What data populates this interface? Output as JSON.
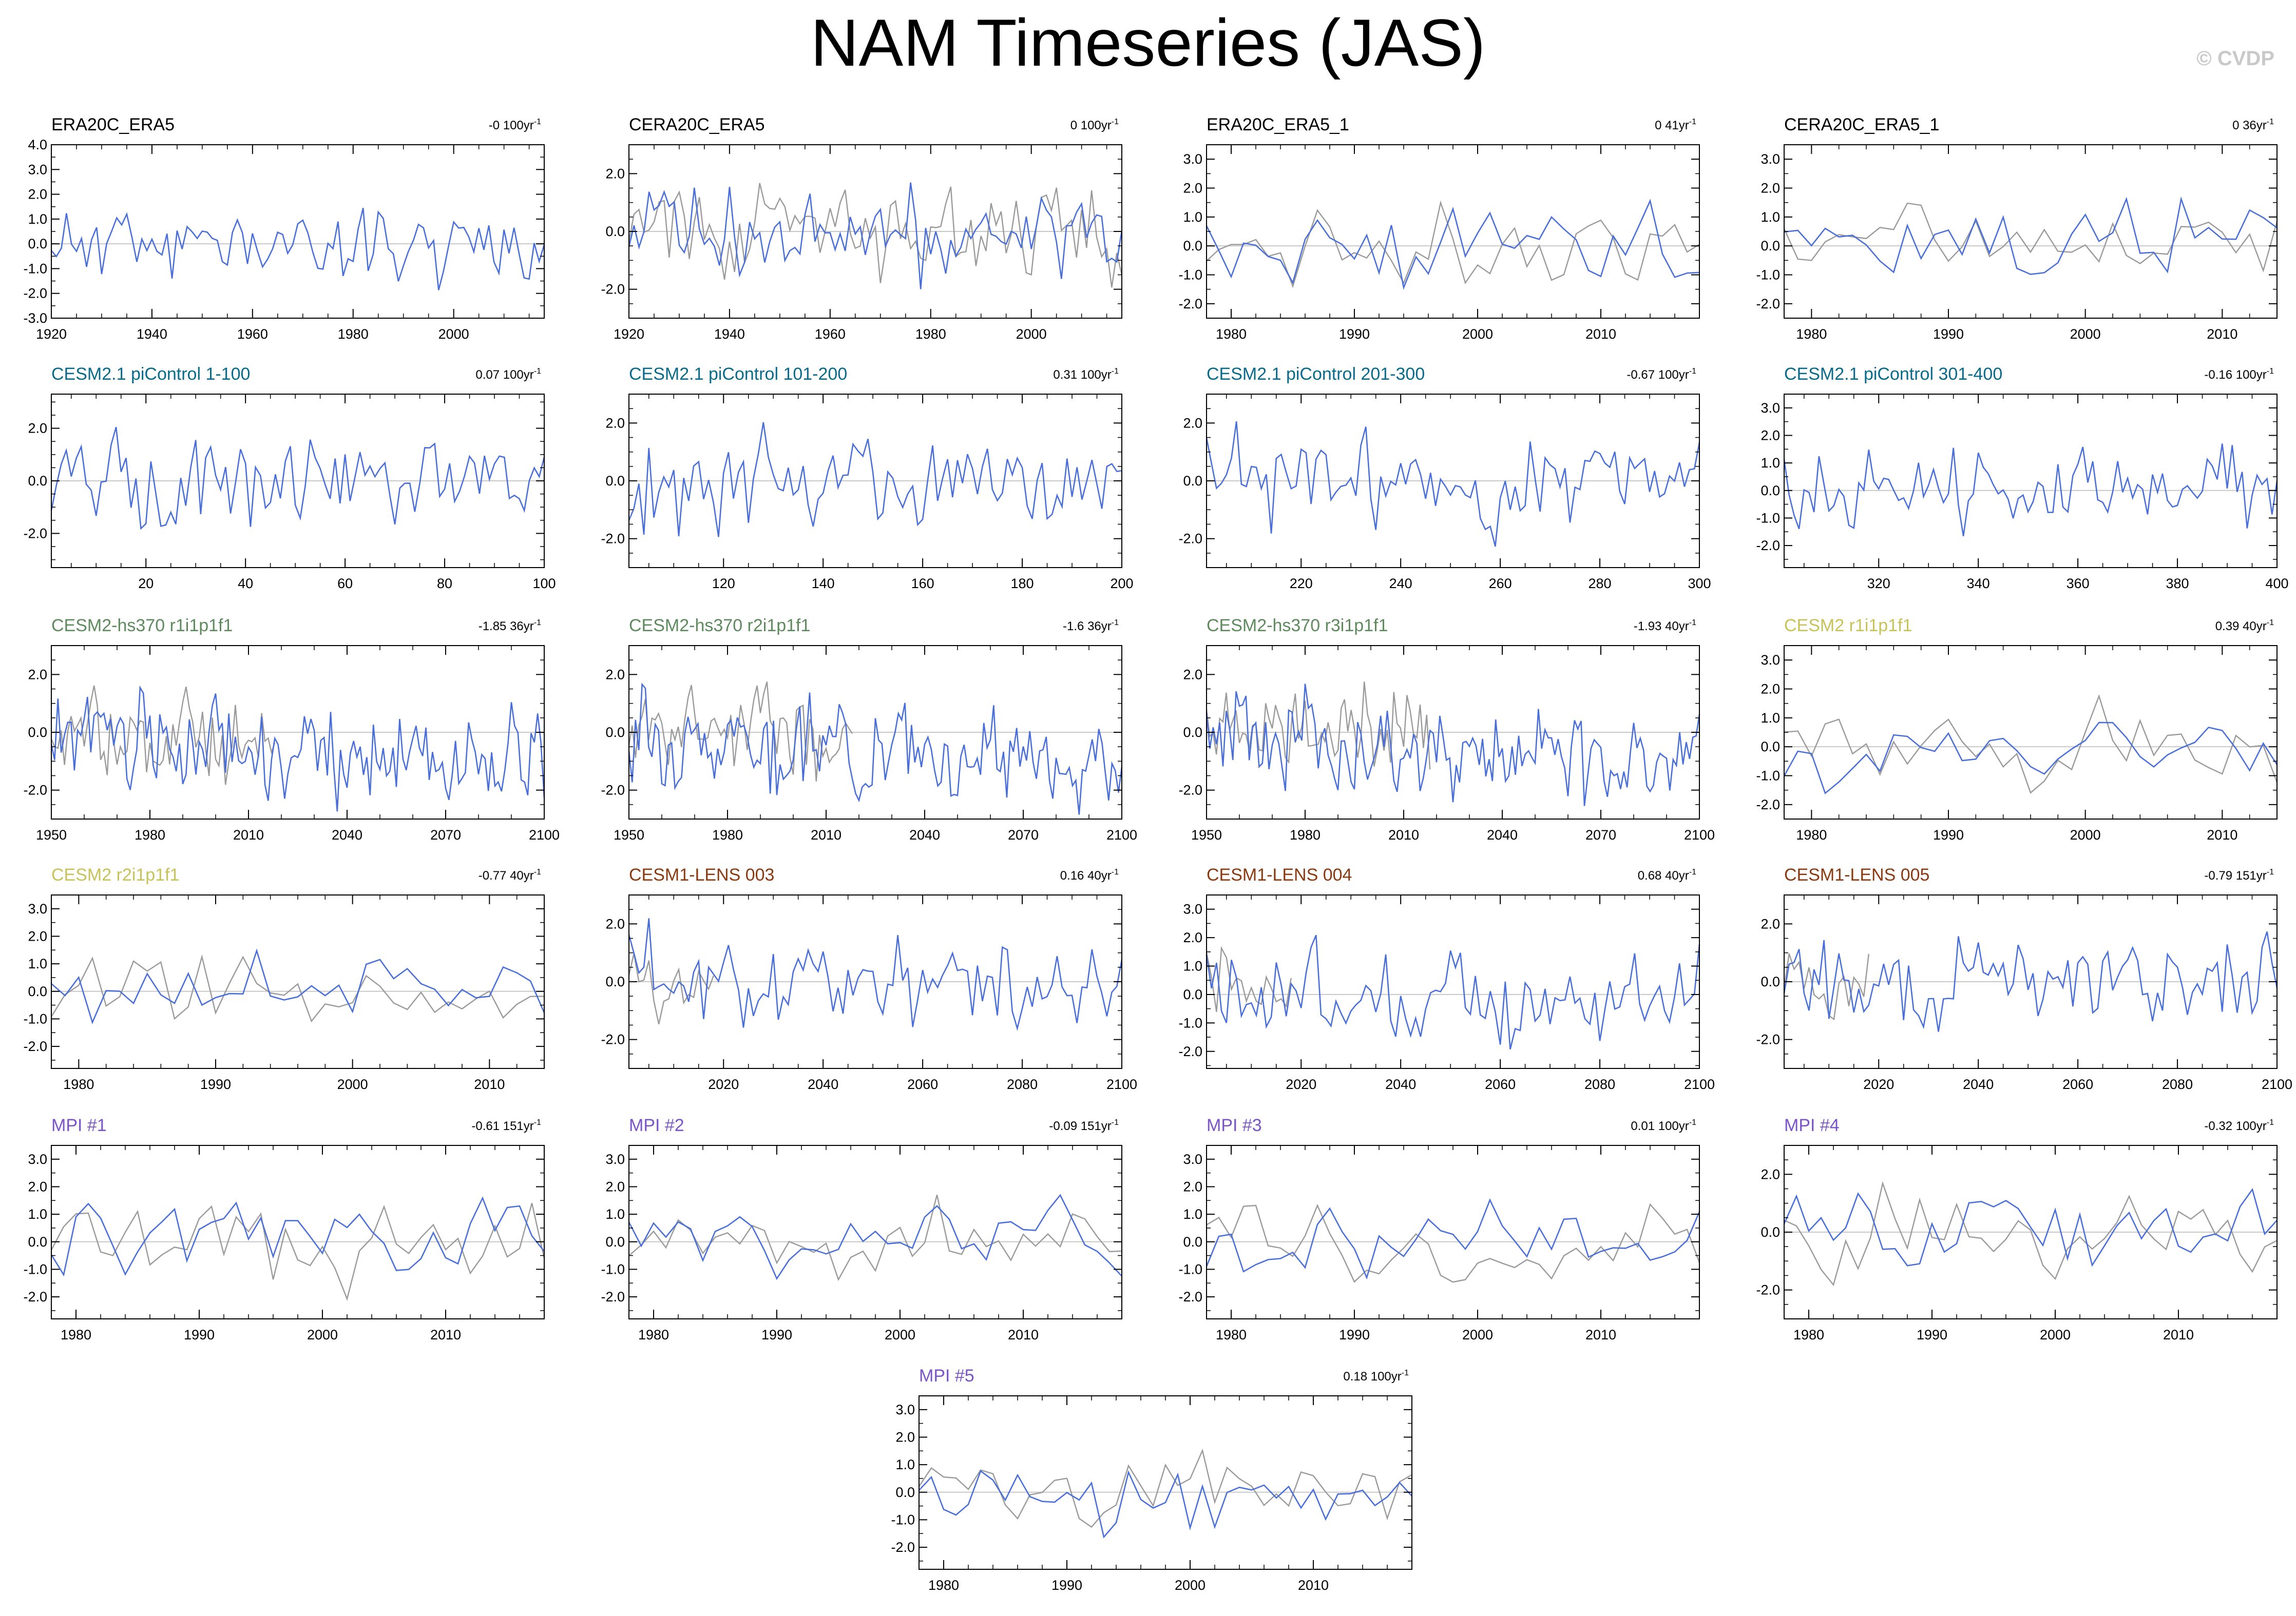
{
  "page": {
    "title": "NAM Timeseries (JAS)",
    "watermark": "© CVDP"
  },
  "colors": {
    "model_line": "#4a6fd8",
    "observation_line": "#9a9a9a",
    "zero_line": "#c8c8c8",
    "title_obs": "#000000",
    "title_picontrol": "#0a6a8a",
    "title_hs370": "#5e8a5e",
    "title_cesm2": "#c8c25a",
    "title_lens": "#8a3a10",
    "title_mpi": "#7a55c8"
  },
  "chart_data": [
    {
      "type": "line",
      "title": "ERA20C_ERA5",
      "title_color": "#000000",
      "trend": "-0 100yr",
      "xlim": [
        1920,
        2018
      ],
      "xticks": [
        1920,
        1940,
        1960,
        1980,
        2000
      ],
      "ylim": [
        -3,
        4
      ],
      "yticks": [
        "-3.0",
        "-2.0",
        "-1.0",
        "0.0",
        "1.0",
        "2.0",
        "3.0",
        "4.0"
      ],
      "obs": false,
      "seed": 11,
      "amp": 0.9
    },
    {
      "type": "line",
      "title": "CERA20C_ERA5",
      "title_color": "#000000",
      "trend": "0 100yr",
      "xlim": [
        1920,
        2018
      ],
      "xticks": [
        1920,
        1940,
        1960,
        1980,
        2000
      ],
      "ylim": [
        -3,
        3
      ],
      "yticks": [
        "-2.0",
        "0.0",
        "2.0"
      ],
      "obs": true,
      "seed": 12,
      "amp": 1.0
    },
    {
      "type": "line",
      "title": "ERA20C_ERA5_1",
      "title_color": "#000000",
      "trend": "0 41yr",
      "xlim": [
        1978,
        2018
      ],
      "xticks": [
        1980,
        1990,
        2000,
        2010
      ],
      "ylim": [
        -2.5,
        3.5
      ],
      "yticks": [
        "-2.0",
        "-1.0",
        "0.0",
        "1.0",
        "2.0",
        "3.0"
      ],
      "obs": true,
      "seed": 13,
      "amp": 0.9
    },
    {
      "type": "line",
      "title": "CERA20C_ERA5_1",
      "title_color": "#000000",
      "trend": "0 36yr",
      "xlim": [
        1978,
        2014
      ],
      "xticks": [
        1980,
        1990,
        2000,
        2010
      ],
      "ylim": [
        -2.5,
        3.5
      ],
      "yticks": [
        "-2.0",
        "-1.0",
        "0.0",
        "1.0",
        "2.0",
        "3.0"
      ],
      "obs": true,
      "seed": 14,
      "amp": 0.9
    },
    {
      "type": "line",
      "title": "CESM2.1 piControl 1-100",
      "title_color": "#0a6a8a",
      "trend": "0.07 100yr",
      "xlim": [
        1,
        100
      ],
      "xticks": [
        20,
        40,
        60,
        80,
        100
      ],
      "ylim": [
        -3.3,
        3.3
      ],
      "yticks": [
        "-2.0",
        "0.0",
        "2.0"
      ],
      "obs": false,
      "seed": 21,
      "amp": 1.0
    },
    {
      "type": "line",
      "title": "CESM2.1 piControl 101-200",
      "title_color": "#0a6a8a",
      "trend": "0.31 100yr",
      "xlim": [
        101,
        200
      ],
      "xticks": [
        120,
        140,
        160,
        180,
        200
      ],
      "ylim": [
        -3,
        3
      ],
      "yticks": [
        "-2.0",
        "0.0",
        "2.0"
      ],
      "obs": false,
      "seed": 22,
      "amp": 1.0
    },
    {
      "type": "line",
      "title": "CESM2.1 piControl 201-300",
      "title_color": "#0a6a8a",
      "trend": "-0.67 100yr",
      "xlim": [
        201,
        300
      ],
      "xticks": [
        220,
        240,
        260,
        280,
        300
      ],
      "ylim": [
        -3,
        3
      ],
      "yticks": [
        "-2.0",
        "0.0",
        "2.0"
      ],
      "obs": false,
      "seed": 23,
      "amp": 1.0
    },
    {
      "type": "line",
      "title": "CESM2.1 piControl 301-400",
      "title_color": "#0a6a8a",
      "trend": "-0.16 100yr",
      "xlim": [
        301,
        400
      ],
      "xticks": [
        320,
        340,
        360,
        380,
        400
      ],
      "ylim": [
        -2.8,
        3.5
      ],
      "yticks": [
        "-2.0",
        "-1.0",
        "0.0",
        "1.0",
        "2.0",
        "3.0"
      ],
      "obs": false,
      "seed": 24,
      "amp": 0.9
    },
    {
      "type": "line",
      "title": "CESM2-hs370 r1i1p1f1",
      "title_color": "#5e8a5e",
      "trend": "-1.85 36yr",
      "xlim": [
        1950,
        2100
      ],
      "xticks": [
        1950,
        1980,
        2010,
        2040,
        2070,
        2100
      ],
      "ylim": [
        -3,
        3
      ],
      "yticks": [
        "-2.0",
        "0.0",
        "2.0"
      ],
      "obs": true,
      "obs_until": 2018,
      "seed": 31,
      "amp": 1.0,
      "drift": -1.0
    },
    {
      "type": "line",
      "title": "CESM2-hs370 r2i1p1f1",
      "title_color": "#5e8a5e",
      "trend": "-1.6 36yr",
      "xlim": [
        1950,
        2100
      ],
      "xticks": [
        1950,
        1980,
        2010,
        2040,
        2070,
        2100
      ],
      "ylim": [
        -3,
        3
      ],
      "yticks": [
        "-2.0",
        "0.0",
        "2.0"
      ],
      "obs": true,
      "obs_until": 2018,
      "seed": 32,
      "amp": 1.0,
      "drift": -0.9
    },
    {
      "type": "line",
      "title": "CESM2-hs370 r3i1p1f1",
      "title_color": "#5e8a5e",
      "trend": "-1.93 40yr",
      "xlim": [
        1950,
        2100
      ],
      "xticks": [
        1950,
        1980,
        2010,
        2040,
        2070,
        2100
      ],
      "ylim": [
        -3,
        3
      ],
      "yticks": [
        "-2.0",
        "0.0",
        "2.0"
      ],
      "obs": true,
      "obs_until": 2018,
      "seed": 33,
      "amp": 1.0,
      "drift": -1.0
    },
    {
      "type": "line",
      "title": "CESM2 r1i1p1f1",
      "title_color": "#c8c25a",
      "trend": "0.39 40yr",
      "xlim": [
        1978,
        2014
      ],
      "xticks": [
        1980,
        1990,
        2000,
        2010
      ],
      "ylim": [
        -2.5,
        3.5
      ],
      "yticks": [
        "-2.0",
        "-1.0",
        "0.0",
        "1.0",
        "2.0",
        "3.0"
      ],
      "obs": true,
      "seed": 34,
      "amp": 0.9
    },
    {
      "type": "line",
      "title": "CESM2 r2i1p1f1",
      "title_color": "#c8c25a",
      "trend": "-0.77 40yr",
      "xlim": [
        1978,
        2014
      ],
      "xticks": [
        1980,
        1990,
        2000,
        2010
      ],
      "ylim": [
        -2.8,
        3.5
      ],
      "yticks": [
        "-2.0",
        "-1.0",
        "0.0",
        "1.0",
        "2.0",
        "3.0"
      ],
      "obs": true,
      "seed": 41,
      "amp": 0.9
    },
    {
      "type": "line",
      "title": "CESM1-LENS 003",
      "title_color": "#8a3a10",
      "trend": "0.16 40yr",
      "xlim": [
        2001,
        2100
      ],
      "xticks": [
        2020,
        2040,
        2060,
        2080,
        2100
      ],
      "ylim": [
        -3,
        3
      ],
      "yticks": [
        "-2.0",
        "0.0",
        "2.0"
      ],
      "obs": true,
      "obs_until": 2018,
      "seed": 42,
      "amp": 1.0
    },
    {
      "type": "line",
      "title": "CESM1-LENS 004",
      "title_color": "#8a3a10",
      "trend": "0.68 40yr",
      "xlim": [
        2001,
        2100
      ],
      "xticks": [
        2020,
        2040,
        2060,
        2080,
        2100
      ],
      "ylim": [
        -2.6,
        3.5
      ],
      "yticks": [
        "-2.0",
        "-1.0",
        "0.0",
        "1.0",
        "2.0",
        "3.0"
      ],
      "obs": true,
      "obs_until": 2018,
      "seed": 43,
      "amp": 1.0
    },
    {
      "type": "line",
      "title": "CESM1-LENS 005",
      "title_color": "#8a3a10",
      "trend": "-0.79 151yr",
      "xlim": [
        2001,
        2100
      ],
      "xticks": [
        2020,
        2040,
        2060,
        2080,
        2100
      ],
      "ylim": [
        -3,
        3
      ],
      "yticks": [
        "-2.0",
        "0.0",
        "2.0"
      ],
      "obs": true,
      "obs_until": 2018,
      "seed": 44,
      "amp": 1.0
    },
    {
      "type": "line",
      "title": "MPI #1",
      "title_color": "#7a55c8",
      "trend": "-0.61 151yr",
      "xlim": [
        1978,
        2018
      ],
      "xticks": [
        1980,
        1990,
        2000,
        2010
      ],
      "ylim": [
        -2.8,
        3.5
      ],
      "yticks": [
        "-2.0",
        "-1.0",
        "0.0",
        "1.0",
        "2.0",
        "3.0"
      ],
      "obs": true,
      "seed": 51,
      "amp": 0.9
    },
    {
      "type": "line",
      "title": "MPI #2",
      "title_color": "#7a55c8",
      "trend": "-0.09 151yr",
      "xlim": [
        1978,
        2018
      ],
      "xticks": [
        1980,
        1990,
        2000,
        2010
      ],
      "ylim": [
        -2.8,
        3.5
      ],
      "yticks": [
        "-2.0",
        "-1.0",
        "0.0",
        "1.0",
        "2.0",
        "3.0"
      ],
      "obs": true,
      "seed": 52,
      "amp": 0.9
    },
    {
      "type": "line",
      "title": "MPI #3",
      "title_color": "#7a55c8",
      "trend": "0.01 100yr",
      "xlim": [
        1978,
        2018
      ],
      "xticks": [
        1980,
        1990,
        2000,
        2010
      ],
      "ylim": [
        -2.8,
        3.5
      ],
      "yticks": [
        "-2.0",
        "-1.0",
        "0.0",
        "1.0",
        "2.0",
        "3.0"
      ],
      "obs": true,
      "seed": 53,
      "amp": 0.9
    },
    {
      "type": "line",
      "title": "MPI #4",
      "title_color": "#7a55c8",
      "trend": "-0.32 100yr",
      "xlim": [
        1978,
        2018
      ],
      "xticks": [
        1980,
        1990,
        2000,
        2010
      ],
      "ylim": [
        -3,
        3
      ],
      "yticks": [
        "-2.0",
        "0.0",
        "2.0"
      ],
      "obs": true,
      "seed": 54,
      "amp": 0.9
    },
    {
      "type": "line",
      "title": "MPI #5",
      "title_color": "#7a55c8",
      "trend": "0.18 100yr",
      "xlim": [
        1978,
        2018
      ],
      "xticks": [
        1980,
        1990,
        2000,
        2010
      ],
      "ylim": [
        -2.8,
        3.5
      ],
      "yticks": [
        "-2.0",
        "-1.0",
        "0.0",
        "1.0",
        "2.0",
        "3.0"
      ],
      "obs": true,
      "seed": 55,
      "amp": 0.9
    }
  ]
}
